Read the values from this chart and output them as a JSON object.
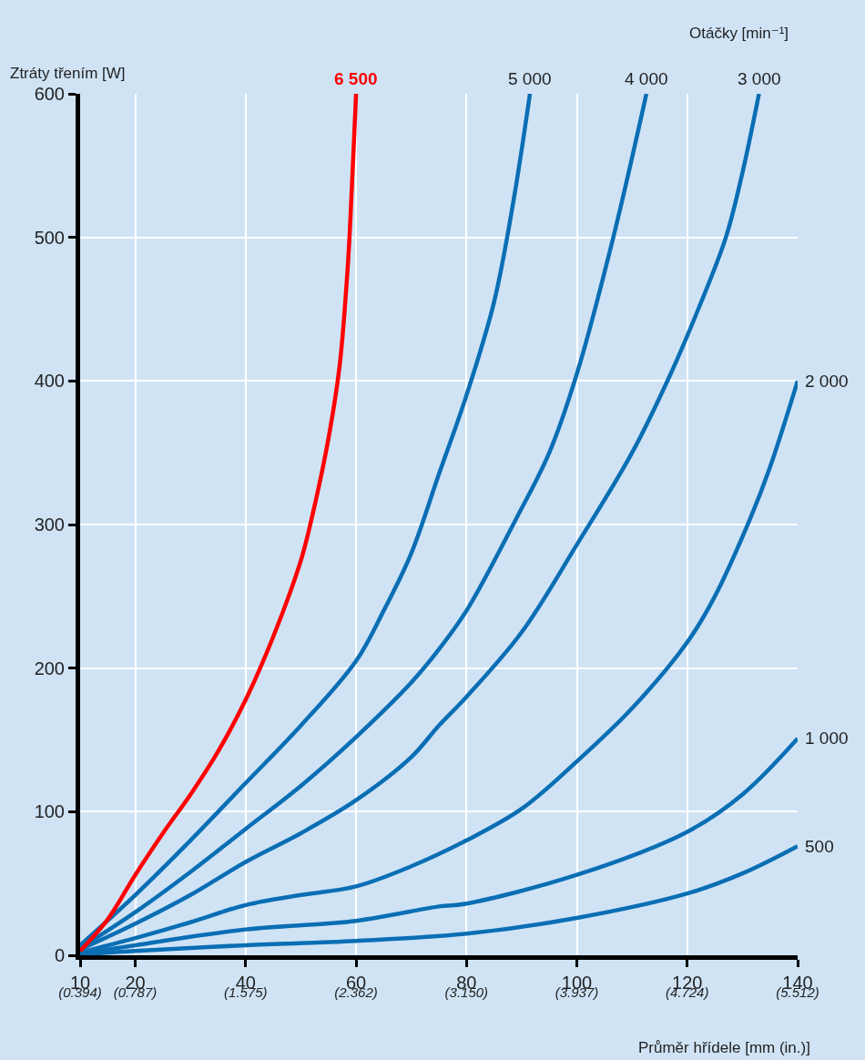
{
  "chart_data": {
    "type": "line",
    "xlabel": "Průměr hřídele [mm (in.)]",
    "ylabel": "Ztráty třením [W]",
    "legend_title": "Otáčky [min⁻¹]",
    "xlim": [
      10,
      140
    ],
    "xticks": [
      10,
      20,
      40,
      60,
      80,
      100,
      120,
      140
    ],
    "x2lim": [
      0.394,
      5.512
    ],
    "x2ticks": [
      {
        "value": 0.394,
        "label": "(0.394)"
      },
      {
        "value": 0.787,
        "label": "(0.787)"
      },
      {
        "value": 1.575,
        "label": "(1.575)"
      },
      {
        "value": 2.362,
        "label": "(2.362)"
      },
      {
        "value": 3.15,
        "label": "(3.150)"
      },
      {
        "value": 3.937,
        "label": "(3.937)"
      },
      {
        "value": 4.724,
        "label": "(4.724)"
      },
      {
        "value": 5.512,
        "label": "(5.512)"
      }
    ],
    "ylim": [
      0,
      600
    ],
    "yticks": [
      0,
      100,
      200,
      300,
      400,
      500,
      600
    ],
    "grid": true,
    "line_style": "solid",
    "marker": "none",
    "series": [
      {
        "name": "6 500",
        "color": "#ff0000",
        "x": [
          10,
          15,
          20,
          25,
          30,
          35,
          40,
          45,
          50,
          52,
          55,
          57,
          58.5,
          59.3,
          60
        ],
        "values": [
          3,
          25,
          56,
          85,
          112,
          142,
          178,
          222,
          275,
          305,
          360,
          410,
          480,
          540,
          600
        ]
      },
      {
        "name": "5 000",
        "color": "#0a6eb4",
        "x": [
          10,
          20,
          30,
          40,
          50,
          60,
          65,
          70,
          75,
          80,
          85,
          88.5,
          91.5
        ],
        "values": [
          7,
          42,
          80,
          120,
          160,
          205,
          240,
          280,
          335,
          390,
          455,
          525,
          600
        ]
      },
      {
        "name": "4 000",
        "color": "#0a6eb4",
        "x": [
          10,
          20,
          30,
          40,
          50,
          60,
          70,
          75,
          80,
          89,
          95,
          100,
          106.6,
          112.6
        ],
        "values": [
          5,
          30,
          58,
          88,
          118,
          152,
          190,
          213,
          240,
          304,
          350,
          405,
          500,
          600
        ]
      },
      {
        "name": "3 000",
        "color": "#0a6eb4",
        "x": [
          10,
          20,
          30,
          40,
          50,
          60,
          70,
          75,
          80,
          90,
          100,
          110,
          117,
          122,
          127,
          130,
          133
        ],
        "values": [
          4,
          22,
          42,
          65,
          85,
          108,
          138,
          160,
          180,
          225,
          286,
          350,
          405,
          450,
          500,
          545,
          600
        ]
      },
      {
        "name": "2 000",
        "color": "#0a6eb4",
        "x": [
          10,
          20,
          30,
          40,
          50,
          60,
          70,
          80,
          90,
          100,
          110,
          120,
          125,
          131.5,
          135,
          140
        ],
        "values": [
          2,
          12,
          23,
          35,
          42,
          48,
          62,
          80,
          102,
          135,
          172,
          218,
          250,
          305,
          340,
          400
        ]
      },
      {
        "name": "1 000",
        "color": "#0a6eb4",
        "x": [
          10,
          20,
          40,
          60,
          75,
          80,
          100,
          120,
          130,
          140
        ],
        "values": [
          1,
          7,
          18,
          24,
          34,
          36,
          56,
          86,
          112,
          151
        ]
      },
      {
        "name": "500",
        "color": "#0a6eb4",
        "x": [
          10,
          20,
          40,
          60,
          80,
          100,
          120,
          130,
          140
        ],
        "values": [
          0.5,
          3,
          7,
          10,
          15,
          26,
          43,
          57,
          76
        ]
      }
    ]
  }
}
